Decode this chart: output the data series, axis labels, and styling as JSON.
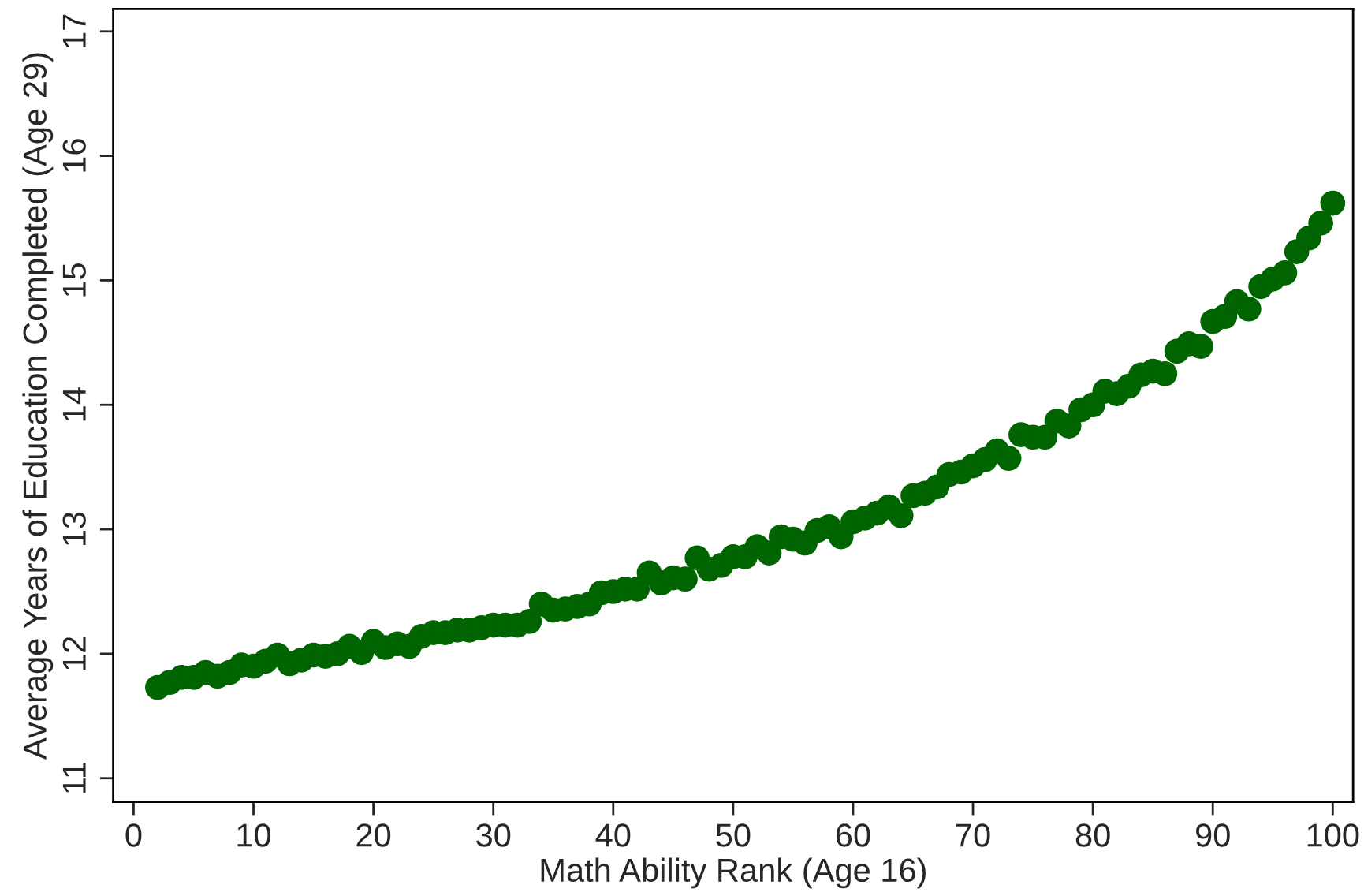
{
  "chart_data": {
    "type": "scatter",
    "xlabel": "Math Ability Rank (Age 16)",
    "ylabel": "Average Years of Education Completed (Age 29)",
    "x": [
      2,
      3,
      4,
      5,
      6,
      7,
      8,
      9,
      10,
      11,
      12,
      13,
      14,
      15,
      16,
      17,
      18,
      19,
      20,
      21,
      22,
      23,
      24,
      25,
      26,
      27,
      28,
      29,
      30,
      31,
      32,
      33,
      34,
      35,
      36,
      37,
      38,
      39,
      40,
      41,
      42,
      43,
      44,
      45,
      46,
      47,
      48,
      49,
      50,
      51,
      52,
      53,
      54,
      55,
      56,
      57,
      58,
      59,
      60,
      61,
      62,
      63,
      64,
      65,
      66,
      67,
      68,
      69,
      70,
      71,
      72,
      73,
      74,
      75,
      76,
      77,
      78,
      79,
      80,
      81,
      82,
      83,
      84,
      85,
      86,
      87,
      88,
      89,
      90,
      91,
      92,
      93,
      94,
      95,
      96,
      97,
      98,
      99,
      100
    ],
    "series": [
      {
        "color": "#006400",
        "values": [
          11.73,
          11.77,
          11.81,
          11.81,
          11.85,
          11.82,
          11.85,
          11.91,
          11.9,
          11.94,
          11.99,
          11.92,
          11.95,
          11.99,
          11.98,
          12.0,
          12.06,
          12.01,
          12.1,
          12.05,
          12.08,
          12.06,
          12.14,
          12.17,
          12.17,
          12.19,
          12.19,
          12.21,
          12.23,
          12.23,
          12.23,
          12.26,
          12.4,
          12.35,
          12.36,
          12.38,
          12.4,
          12.49,
          12.5,
          12.52,
          12.52,
          12.65,
          12.57,
          12.61,
          12.6,
          12.77,
          12.68,
          12.71,
          12.78,
          12.78,
          12.86,
          12.81,
          12.94,
          12.92,
          12.89,
          12.99,
          13.02,
          12.94,
          13.06,
          13.09,
          13.13,
          13.18,
          13.11,
          13.27,
          13.29,
          13.34,
          13.44,
          13.46,
          13.51,
          13.56,
          13.63,
          13.57,
          13.76,
          13.74,
          13.74,
          13.87,
          13.83,
          13.96,
          14.0,
          14.11,
          14.09,
          14.15,
          14.24,
          14.27,
          14.25,
          14.43,
          14.49,
          14.47,
          14.67,
          14.71,
          14.83,
          14.77,
          14.95,
          15.01,
          15.06,
          15.23,
          15.34,
          15.46,
          15.62
        ]
      }
    ],
    "xlim": [
      -1.7,
      101.7
    ],
    "ylim": [
      10.81,
      17.18
    ],
    "xticks": [
      0,
      10,
      20,
      30,
      40,
      50,
      60,
      70,
      80,
      90,
      100
    ],
    "yticks": [
      11,
      12,
      13,
      14,
      15,
      16,
      17
    ],
    "grid": false,
    "legend": false,
    "marker": "circle"
  }
}
